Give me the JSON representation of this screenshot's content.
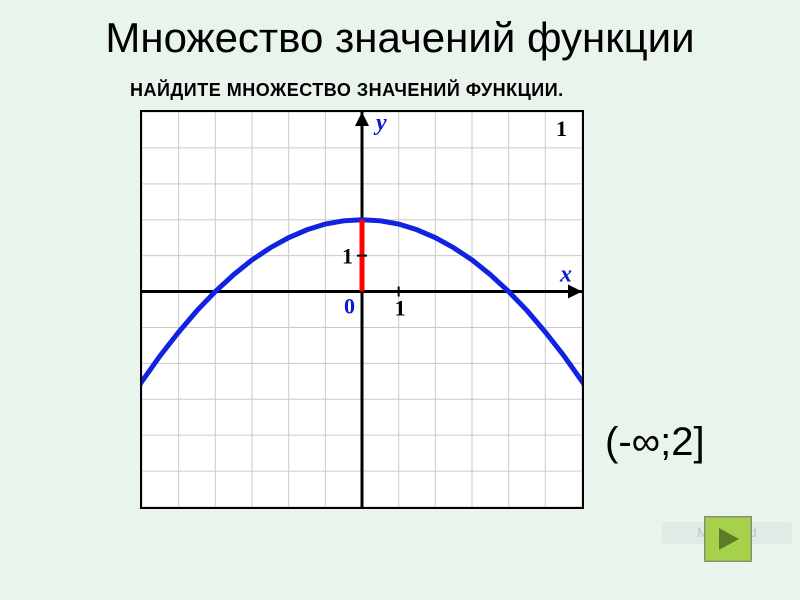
{
  "slide": {
    "bg_color": "#e9f4ed",
    "title": "Множество значений функции",
    "title_color": "#000000",
    "subtitle": "НАЙДИТЕ МНОЖЕСТВО ЗНАЧЕНИЙ ФУНКЦИИ.",
    "subtitle_color": "#000000",
    "answer": "(-∞;2]",
    "answer_color": "#000000",
    "watermark": "MyShared"
  },
  "nav_button": {
    "bg_color": "#a5d24a",
    "arrow_color": "#5e7c27"
  },
  "chart": {
    "type": "line",
    "plot_bg": "#ffffff",
    "grid_color": "#c9c9c9",
    "axis_color": "#000000",
    "axis_width": 3,
    "x_range": [
      -6,
      6
    ],
    "y_range": [
      -6,
      5
    ],
    "grid_step": 1,
    "x_axis_label": "x",
    "y_axis_label": "y",
    "axis_label_color": "#0b16d6",
    "origin_label": "0",
    "tick_label_x": "1",
    "tick_label_y": "1",
    "tick_label_color": "#000000",
    "tick_label_fontsize": 22,
    "axis_label_fontsize": 24,
    "corner_label": "1",
    "vertical_segment": {
      "x": 0,
      "y_from": 0,
      "y_to": 2,
      "color": "#ff0000",
      "width": 5
    },
    "curve": {
      "color": "#1023e0",
      "width": 5,
      "formula_note": "y = 2 - x^2/8",
      "points": [
        [
          -8.0,
          -6.0
        ],
        [
          -7.5,
          -5.03
        ],
        [
          -7.0,
          -4.13
        ],
        [
          -6.5,
          -3.28
        ],
        [
          -6.0,
          -2.5
        ],
        [
          -5.5,
          -1.78
        ],
        [
          -5.0,
          -1.13
        ],
        [
          -4.5,
          -0.53
        ],
        [
          -4.0,
          0.0
        ],
        [
          -3.5,
          0.47
        ],
        [
          -3.0,
          0.88
        ],
        [
          -2.5,
          1.22
        ],
        [
          -2.0,
          1.5
        ],
        [
          -1.5,
          1.72
        ],
        [
          -1.0,
          1.88
        ],
        [
          -0.5,
          1.97
        ],
        [
          0.0,
          2.0
        ],
        [
          0.5,
          1.97
        ],
        [
          1.0,
          1.88
        ],
        [
          1.5,
          1.72
        ],
        [
          2.0,
          1.5
        ],
        [
          2.5,
          1.22
        ],
        [
          3.0,
          0.88
        ],
        [
          3.5,
          0.47
        ],
        [
          4.0,
          0.0
        ],
        [
          4.5,
          -0.53
        ],
        [
          5.0,
          -1.13
        ],
        [
          5.5,
          -1.78
        ],
        [
          6.0,
          -2.5
        ],
        [
          6.5,
          -3.28
        ],
        [
          7.0,
          -4.13
        ],
        [
          7.5,
          -5.03
        ],
        [
          8.0,
          -6.0
        ]
      ]
    }
  }
}
